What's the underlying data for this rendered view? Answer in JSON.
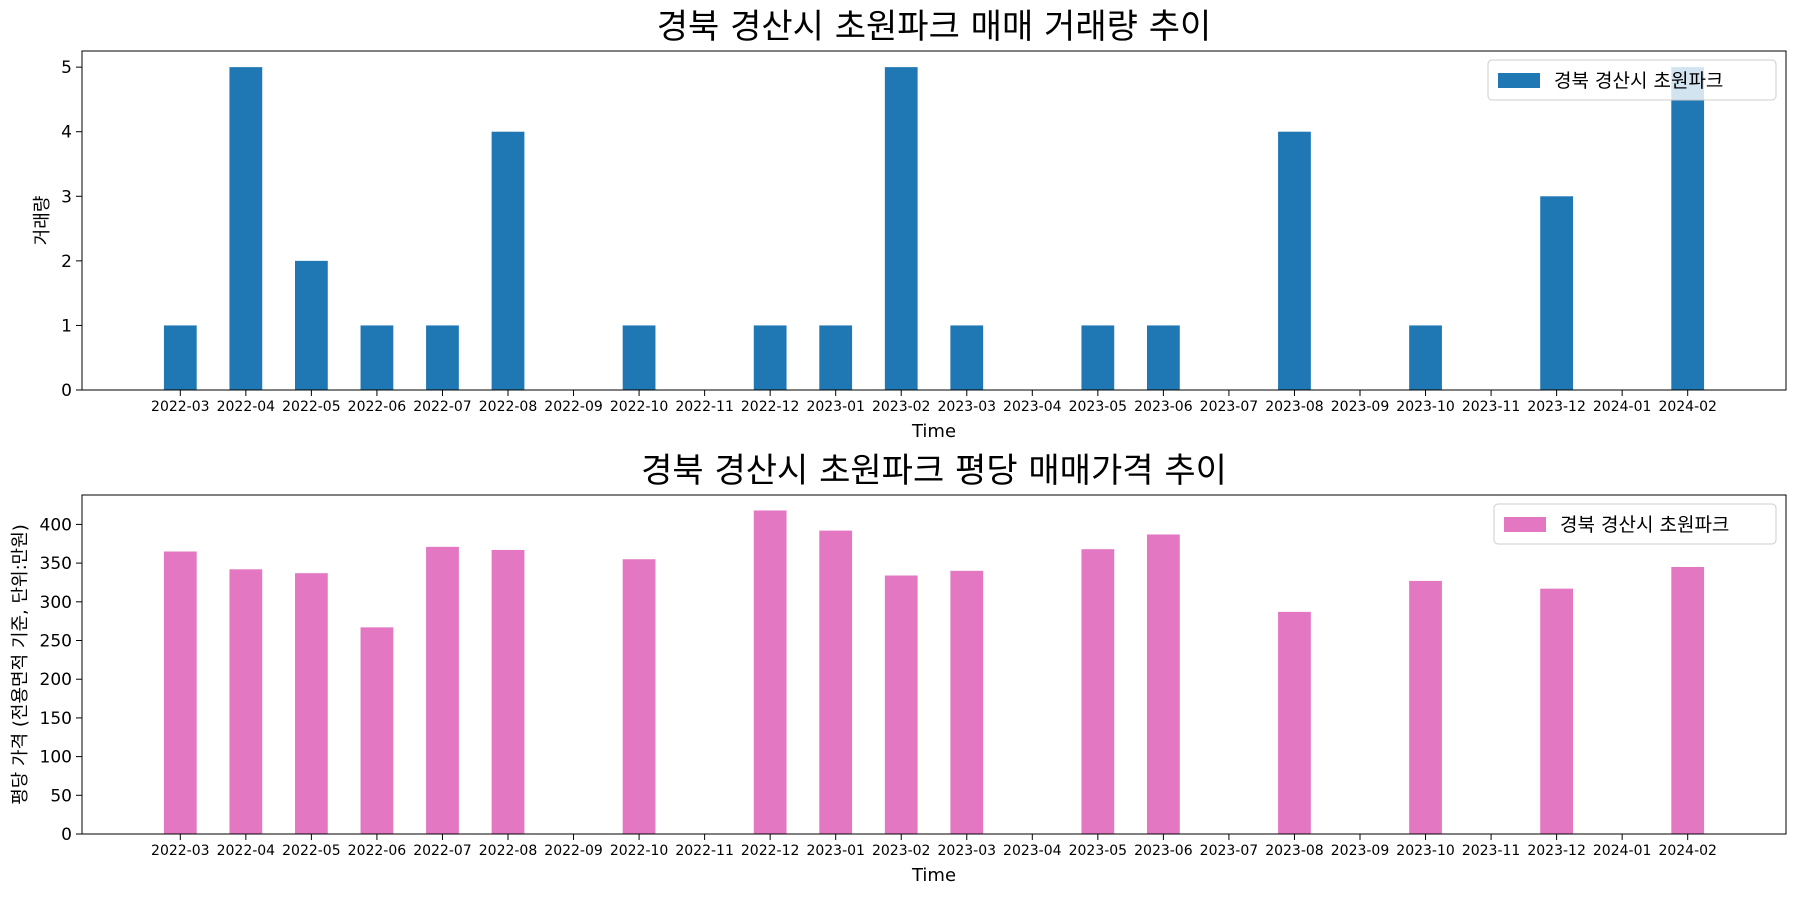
{
  "chart_data": [
    {
      "type": "bar",
      "title": "경북 경산시 초원파크 매매 거래량 추이",
      "xlabel": "Time",
      "ylabel": "거래량",
      "categories": [
        "2022-03",
        "2022-04",
        "2022-05",
        "2022-06",
        "2022-07",
        "2022-08",
        "2022-09",
        "2022-10",
        "2022-11",
        "2022-12",
        "2023-01",
        "2023-02",
        "2023-03",
        "2023-04",
        "2023-05",
        "2023-06",
        "2023-07",
        "2023-08",
        "2023-09",
        "2023-10",
        "2023-11",
        "2023-12",
        "2024-01",
        "2024-02"
      ],
      "series": [
        {
          "name": "경북 경산시 초원파크",
          "color": "#1f77b4",
          "values": [
            1,
            5,
            2,
            1,
            1,
            4,
            null,
            1,
            null,
            1,
            1,
            5,
            1,
            null,
            1,
            1,
            null,
            4,
            null,
            1,
            null,
            3,
            null,
            5
          ]
        }
      ],
      "ylim": [
        0,
        5.25
      ],
      "yticks": [
        0,
        1,
        2,
        3,
        4,
        5
      ],
      "legend": "top-right",
      "grid": false
    },
    {
      "type": "bar",
      "title": "경북 경산시 초원파크 평당 매매가격 추이",
      "xlabel": "Time",
      "ylabel": "평당 가격 (전용면적 기준, 단위:만원)",
      "categories": [
        "2022-03",
        "2022-04",
        "2022-05",
        "2022-06",
        "2022-07",
        "2022-08",
        "2022-09",
        "2022-10",
        "2022-11",
        "2022-12",
        "2023-01",
        "2023-02",
        "2023-03",
        "2023-04",
        "2023-05",
        "2023-06",
        "2023-07",
        "2023-08",
        "2023-09",
        "2023-10",
        "2023-11",
        "2023-12",
        "2024-01",
        "2024-02"
      ],
      "series": [
        {
          "name": "경북 경산시 초원파크",
          "color": "#e377c2",
          "values": [
            365,
            342,
            337,
            267,
            371,
            367,
            null,
            355,
            null,
            418,
            392,
            334,
            340,
            null,
            368,
            387,
            null,
            287,
            null,
            327,
            null,
            317,
            null,
            345
          ]
        }
      ],
      "ylim": [
        0,
        438
      ],
      "yticks": [
        0,
        50,
        100,
        150,
        200,
        250,
        300,
        350,
        400
      ],
      "legend": "top-right",
      "grid": false
    }
  ]
}
